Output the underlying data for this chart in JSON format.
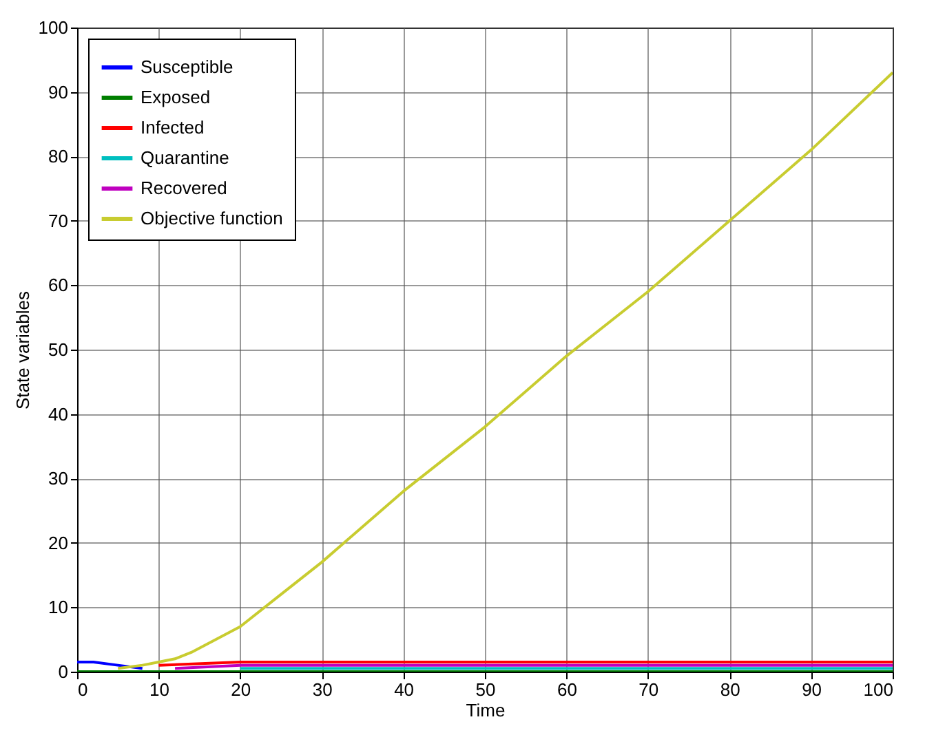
{
  "chart_data": {
    "type": "line",
    "xlabel": "Time",
    "ylabel": "State variables",
    "series": [
      {
        "name": "Susceptible",
        "color": "#0000ff",
        "x": [
          0,
          2,
          5,
          8
        ],
        "values": [
          1.5,
          1.5,
          1,
          0.5
        ]
      },
      {
        "name": "Exposed",
        "color": "#007f00",
        "x": [
          0,
          20,
          40,
          60,
          80,
          100
        ],
        "values": [
          0,
          0,
          0,
          0,
          0,
          0
        ]
      },
      {
        "name": "Infected",
        "color": "#ff0000",
        "x": [
          10,
          20,
          40,
          60,
          80,
          100
        ],
        "values": [
          1,
          1.5,
          1.5,
          1.5,
          1.5,
          1.5
        ]
      },
      {
        "name": "Quarantine",
        "color": "#00bfbf",
        "x": [
          20,
          40,
          60,
          80,
          100
        ],
        "values": [
          0.5,
          0.5,
          0.5,
          0.5,
          0.5
        ]
      },
      {
        "name": "Recovered",
        "color": "#bf00bf",
        "x": [
          12,
          20,
          40,
          60,
          80,
          100
        ],
        "values": [
          0.5,
          1,
          1,
          1,
          1,
          1
        ]
      },
      {
        "name": "Objective function",
        "color": "#c8cc30",
        "x": [
          5,
          8,
          10,
          12,
          14,
          17,
          20,
          25,
          30,
          40,
          50,
          60,
          70,
          80,
          90,
          100
        ],
        "values": [
          0.5,
          1,
          1.5,
          2,
          3,
          5,
          7,
          12,
          17,
          28,
          38,
          49,
          59,
          70,
          81,
          93
        ]
      }
    ],
    "xlim": [
      0,
      100
    ],
    "xticks": [
      0,
      10,
      20,
      30,
      40,
      50,
      60,
      70,
      80,
      90,
      100
    ],
    "ylim": [
      0,
      100
    ],
    "yticks": [
      0,
      10,
      20,
      30,
      40,
      50,
      60,
      70,
      80,
      90,
      100
    ],
    "grid": true,
    "legend": "top left",
    "marker": "none",
    "line_style": "solid"
  }
}
